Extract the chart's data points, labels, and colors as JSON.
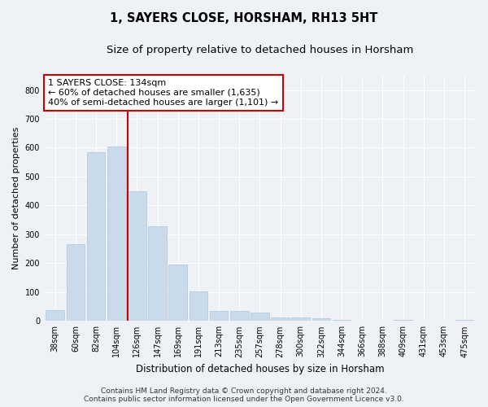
{
  "title": "1, SAYERS CLOSE, HORSHAM, RH13 5HT",
  "subtitle": "Size of property relative to detached houses in Horsham",
  "xlabel": "Distribution of detached houses by size in Horsham",
  "ylabel": "Number of detached properties",
  "categories": [
    "38sqm",
    "60sqm",
    "82sqm",
    "104sqm",
    "126sqm",
    "147sqm",
    "169sqm",
    "191sqm",
    "213sqm",
    "235sqm",
    "257sqm",
    "278sqm",
    "300sqm",
    "322sqm",
    "344sqm",
    "366sqm",
    "388sqm",
    "409sqm",
    "431sqm",
    "453sqm",
    "475sqm"
  ],
  "values": [
    38,
    265,
    585,
    603,
    450,
    328,
    196,
    101,
    35,
    35,
    30,
    12,
    12,
    8,
    5,
    2,
    2,
    4,
    0,
    0,
    3
  ],
  "bar_color": "#c9daea",
  "bar_edgecolor": "#aec6d8",
  "vline_x_index": 4,
  "vline_color": "#cc0000",
  "annotation_text": "1 SAYERS CLOSE: 134sqm\n← 60% of detached houses are smaller (1,635)\n40% of semi-detached houses are larger (1,101) →",
  "annotation_box_color": "#ffffff",
  "annotation_box_edgecolor": "#cc0000",
  "ylim": [
    0,
    850
  ],
  "yticks": [
    0,
    100,
    200,
    300,
    400,
    500,
    600,
    700,
    800
  ],
  "background_color": "#eef2f7",
  "footer_line1": "Contains HM Land Registry data © Crown copyright and database right 2024.",
  "footer_line2": "Contains public sector information licensed under the Open Government Licence v3.0.",
  "title_fontsize": 10.5,
  "subtitle_fontsize": 9.5,
  "xlabel_fontsize": 8.5,
  "ylabel_fontsize": 8,
  "tick_fontsize": 7,
  "annotation_fontsize": 8,
  "footer_fontsize": 6.5,
  "vline_linewidth": 1.5,
  "grid_color": "#ffffff",
  "grid_linewidth": 0.8
}
